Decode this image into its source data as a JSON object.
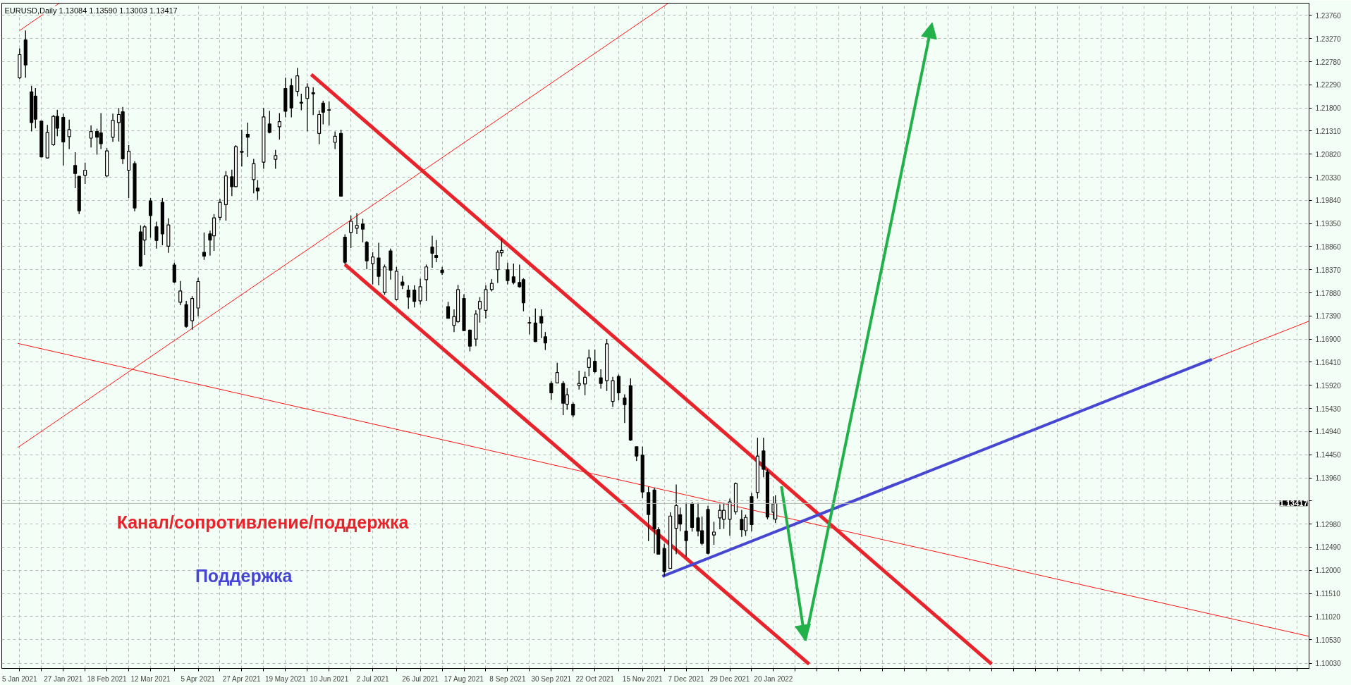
{
  "chart_data": {
    "type": "candlestick",
    "title": "EURUSD,Daily  1.13084 1.13590 1.13003 1.13417",
    "x": [
      "2021-01-05",
      "2021-01-08",
      "2021-01-11",
      "2021-01-13",
      "2021-01-16",
      "2021-01-19",
      "2021-01-22",
      "2021-01-24",
      "2021-01-27",
      "2021-01-30",
      "2021-02-02",
      "2021-02-04",
      "2021-02-07",
      "2021-02-10",
      "2021-02-13",
      "2021-02-15",
      "2021-02-18",
      "2021-02-21",
      "2021-02-24",
      "2021-02-26",
      "2021-03-01",
      "2021-03-04",
      "2021-03-07",
      "2021-03-09",
      "2021-03-12",
      "2021-03-15",
      "2021-03-18",
      "2021-03-21",
      "2021-03-24",
      "2021-03-27",
      "2021-03-30",
      "2021-04-02",
      "2021-04-05",
      "2021-04-08",
      "2021-04-11",
      "2021-04-13",
      "2021-04-16",
      "2021-04-19",
      "2021-04-22",
      "2021-04-24",
      "2021-04-27",
      "2021-04-30",
      "2021-05-03",
      "2021-05-05",
      "2021-05-08",
      "2021-05-11",
      "2021-05-14",
      "2021-05-16",
      "2021-05-19",
      "2021-05-22",
      "2021-05-25",
      "2021-05-27",
      "2021-05-30",
      "2021-06-02",
      "2021-06-05",
      "2021-06-07",
      "2021-06-10",
      "2021-06-13",
      "2021-06-16",
      "2021-06-18",
      "2021-06-21",
      "2021-06-24",
      "2021-06-27",
      "2021-06-29",
      "2021-07-02",
      "2021-07-05",
      "2021-07-08",
      "2021-07-11",
      "2021-07-14",
      "2021-07-17",
      "2021-07-20",
      "2021-07-23",
      "2021-07-26",
      "2021-07-29",
      "2021-08-01",
      "2021-08-03",
      "2021-08-06",
      "2021-08-09",
      "2021-08-12",
      "2021-08-14",
      "2021-08-17",
      "2021-08-20",
      "2021-08-23",
      "2021-08-25",
      "2021-08-28",
      "2021-08-31",
      "2021-09-03",
      "2021-09-05",
      "2021-09-08",
      "2021-09-11",
      "2021-09-14",
      "2021-09-16",
      "2021-09-19",
      "2021-09-22",
      "2021-09-25",
      "2021-09-27",
      "2021-09-30",
      "2021-10-03",
      "2021-10-06",
      "2021-10-08",
      "2021-10-11",
      "2021-10-14",
      "2021-10-17",
      "2021-10-19",
      "2021-10-22",
      "2021-10-25",
      "2021-10-28",
      "2021-10-31",
      "2021-11-03",
      "2021-11-06",
      "2021-11-09",
      "2021-11-12",
      "2021-11-15",
      "2021-11-18",
      "2021-11-21",
      "2021-11-23",
      "2021-11-26",
      "2021-11-29",
      "2021-12-02",
      "2021-12-04",
      "2021-12-07",
      "2021-12-10",
      "2021-12-13",
      "2021-12-15",
      "2021-12-18",
      "2021-12-21",
      "2021-12-24",
      "2021-12-26",
      "2021-12-29",
      "2022-01-01",
      "2022-01-04",
      "2022-01-06",
      "2022-01-09",
      "2022-01-12",
      "2022-01-15",
      "2022-01-17",
      "2022-01-20",
      "2022-01-21"
    ],
    "ohlc": [
      [
        1.2244,
        1.2306,
        1.2241,
        1.2293
      ],
      [
        1.2324,
        1.2344,
        1.2244,
        1.2271
      ],
      [
        1.2214,
        1.2227,
        1.213,
        1.2149
      ],
      [
        1.2205,
        1.2222,
        1.2137,
        1.2156
      ],
      [
        1.2152,
        1.2152,
        1.2075,
        1.2076
      ],
      [
        1.2074,
        1.2144,
        1.2073,
        1.2128
      ],
      [
        1.2102,
        1.2165,
        1.21,
        1.2162
      ],
      [
        1.2162,
        1.2176,
        1.212,
        1.2137
      ],
      [
        1.216,
        1.2168,
        1.2058,
        1.2108
      ],
      [
        1.2119,
        1.2155,
        1.2093,
        1.2134
      ],
      [
        1.2058,
        1.2086,
        1.201,
        1.2041
      ],
      [
        1.2035,
        1.2035,
        1.1955,
        1.1962
      ],
      [
        1.2037,
        1.2064,
        1.2019,
        1.2048
      ],
      [
        1.2116,
        1.2143,
        1.2096,
        1.213
      ],
      [
        1.213,
        1.2136,
        1.2081,
        1.2118
      ],
      [
        1.2127,
        1.2169,
        1.2093,
        1.2104
      ],
      [
        1.2036,
        1.2095,
        1.2033,
        1.2089
      ],
      [
        1.2118,
        1.2168,
        1.2108,
        1.2154
      ],
      [
        1.2149,
        1.218,
        1.2109,
        1.2166
      ],
      [
        1.2172,
        1.2182,
        1.2061,
        1.2072
      ],
      [
        1.2048,
        1.2101,
        1.1989,
        1.2088
      ],
      [
        1.2062,
        1.2067,
        1.1961,
        1.1968
      ],
      [
        1.1917,
        1.1931,
        1.1843,
        1.1845
      ],
      [
        1.19,
        1.1932,
        1.1868,
        1.1928
      ],
      [
        1.1983,
        1.1989,
        1.1905,
        1.1952
      ],
      [
        1.1928,
        1.1939,
        1.1882,
        1.1899
      ],
      [
        1.198,
        1.1989,
        1.1889,
        1.1913
      ],
      [
        1.1887,
        1.1946,
        1.1873,
        1.1932
      ],
      [
        1.1847,
        1.1852,
        1.1809,
        1.1811
      ],
      [
        1.1768,
        1.1813,
        1.1762,
        1.1792
      ],
      [
        1.1763,
        1.1771,
        1.1714,
        1.1717
      ],
      [
        1.1729,
        1.1781,
        1.171,
        1.1776
      ],
      [
        1.1756,
        1.182,
        1.1738,
        1.1812
      ],
      [
        1.1874,
        1.1916,
        1.1858,
        1.1866
      ],
      [
        1.1913,
        1.192,
        1.1867,
        1.19
      ],
      [
        1.1909,
        1.1955,
        1.1877,
        1.1947
      ],
      [
        1.1948,
        1.1987,
        1.1942,
        1.198
      ],
      [
        1.1975,
        1.2046,
        1.1941,
        1.2036
      ],
      [
        1.2034,
        1.2049,
        1.1993,
        1.2013
      ],
      [
        1.2013,
        1.2101,
        1.2012,
        1.2098
      ],
      [
        1.2086,
        1.2134,
        1.2056,
        1.2088
      ],
      [
        1.2124,
        1.2149,
        1.2076,
        1.2118
      ],
      [
        1.2028,
        1.2072,
        1.1999,
        1.2062
      ],
      [
        1.201,
        1.2027,
        1.1985,
        1.2004
      ],
      [
        1.2065,
        1.218,
        1.2051,
        1.2161
      ],
      [
        1.2146,
        1.2174,
        1.2126,
        1.2128
      ],
      [
        1.2071,
        1.2091,
        1.2051,
        1.2079
      ],
      [
        1.214,
        1.2169,
        1.2113,
        1.2151
      ],
      [
        1.2221,
        1.2244,
        1.216,
        1.2173
      ],
      [
        1.2227,
        1.2242,
        1.216,
        1.218
      ],
      [
        1.2215,
        1.2265,
        1.2205,
        1.2248
      ],
      [
        1.219,
        1.221,
        1.2175,
        1.2192
      ],
      [
        1.22,
        1.2232,
        1.213,
        1.2224
      ],
      [
        1.2212,
        1.2224,
        1.2165,
        1.221
      ],
      [
        1.2126,
        1.2175,
        1.2103,
        1.2166
      ],
      [
        1.219,
        1.2195,
        1.2145,
        1.2171
      ],
      [
        1.2176,
        1.2194,
        1.2143,
        1.2175
      ],
      [
        1.2107,
        1.213,
        1.2093,
        1.212
      ],
      [
        1.2126,
        1.2134,
        1.1993,
        1.1993
      ],
      [
        1.1906,
        1.1912,
        1.1848,
        1.1853
      ],
      [
        1.1916,
        1.1952,
        1.1883,
        1.194
      ],
      [
        1.1925,
        1.1957,
        1.1913,
        1.1931
      ],
      [
        1.1934,
        1.1945,
        1.1895,
        1.1923
      ],
      [
        1.1895,
        1.1898,
        1.1838,
        1.1856
      ],
      [
        1.185,
        1.1874,
        1.1806,
        1.1864
      ],
      [
        1.1862,
        1.1894,
        1.1804,
        1.1823
      ],
      [
        1.1789,
        1.1848,
        1.1784,
        1.1843
      ],
      [
        1.1877,
        1.1882,
        1.1816,
        1.1836
      ],
      [
        1.1774,
        1.1843,
        1.1772,
        1.1834
      ],
      [
        1.1811,
        1.1824,
        1.1796,
        1.1804
      ],
      [
        1.1794,
        1.1804,
        1.1754,
        1.1779
      ],
      [
        1.1794,
        1.1804,
        1.1757,
        1.177
      ],
      [
        1.1771,
        1.1818,
        1.1763,
        1.1801
      ],
      [
        1.1816,
        1.1848,
        1.1771,
        1.1843
      ],
      [
        1.1885,
        1.1909,
        1.1841,
        1.1872
      ],
      [
        1.1867,
        1.19,
        1.1853,
        1.1863
      ],
      [
        1.1836,
        1.1843,
        1.1826,
        1.1831
      ],
      [
        1.1759,
        1.1769,
        1.1734,
        1.1734
      ],
      [
        1.1719,
        1.1753,
        1.1705,
        1.1738
      ],
      [
        1.1727,
        1.1805,
        1.1724,
        1.1795
      ],
      [
        1.1776,
        1.1785,
        1.1707,
        1.1708
      ],
      [
        1.1709,
        1.171,
        1.1664,
        1.1675
      ],
      [
        1.169,
        1.1751,
        1.1675,
        1.1743
      ],
      [
        1.1754,
        1.1779,
        1.1725,
        1.177
      ],
      [
        1.1751,
        1.1804,
        1.1734,
        1.1795
      ],
      [
        1.1795,
        1.1817,
        1.1791,
        1.1808
      ],
      [
        1.1837,
        1.1878,
        1.1809,
        1.1874
      ],
      [
        1.1873,
        1.1903,
        1.1865,
        1.1878
      ],
      [
        1.1837,
        1.1852,
        1.1806,
        1.1814
      ],
      [
        1.1822,
        1.185,
        1.1806,
        1.181
      ],
      [
        1.181,
        1.1848,
        1.1799,
        1.1801
      ],
      [
        1.1816,
        1.1819,
        1.1749,
        1.1767
      ],
      [
        1.1725,
        1.1737,
        1.17,
        1.1724
      ],
      [
        1.1724,
        1.1755,
        1.1684,
        1.1685
      ],
      [
        1.1738,
        1.1753,
        1.1692,
        1.1724
      ],
      [
        1.1695,
        1.1705,
        1.1667,
        1.1682
      ],
      [
        1.1596,
        1.1601,
        1.1561,
        1.1576
      ],
      [
        1.1597,
        1.164,
        1.1596,
        1.1619
      ],
      [
        1.1596,
        1.1601,
        1.1529,
        1.1554
      ],
      [
        1.1552,
        1.1586,
        1.154,
        1.1572
      ],
      [
        1.1552,
        1.1556,
        1.1524,
        1.1529
      ],
      [
        1.1592,
        1.1623,
        1.1583,
        1.1596
      ],
      [
        1.1595,
        1.1621,
        1.1571,
        1.1609
      ],
      [
        1.163,
        1.1668,
        1.1611,
        1.165
      ],
      [
        1.1643,
        1.1668,
        1.1618,
        1.1621
      ],
      [
        1.1608,
        1.1626,
        1.1585,
        1.1596
      ],
      [
        1.1602,
        1.169,
        1.158,
        1.168
      ],
      [
        1.1558,
        1.161,
        1.1546,
        1.1602
      ],
      [
        1.1611,
        1.1615,
        1.156,
        1.1576
      ],
      [
        1.1565,
        1.1573,
        1.1512,
        1.1551
      ],
      [
        1.1591,
        1.1607,
        1.1474,
        1.1476
      ],
      [
        1.1462,
        1.1462,
        1.1432,
        1.1442
      ],
      [
        1.1444,
        1.1462,
        1.1353,
        1.1366
      ],
      [
        1.1365,
        1.1377,
        1.1262,
        1.1318
      ],
      [
        1.137,
        1.1375,
        1.1236,
        1.1288
      ],
      [
        1.1286,
        1.1291,
        1.1234,
        1.1234
      ],
      [
        1.1246,
        1.1256,
        1.1187,
        1.1197
      ],
      [
        1.1204,
        1.1323,
        1.1204,
        1.1315
      ],
      [
        1.1289,
        1.1382,
        1.1234,
        1.1337
      ],
      [
        1.1318,
        1.1333,
        1.1283,
        1.1298
      ],
      [
        1.1283,
        1.1343,
        1.1229,
        1.1263
      ],
      [
        1.1341,
        1.1345,
        1.1282,
        1.1291
      ],
      [
        1.1311,
        1.1343,
        1.1272,
        1.1283
      ],
      [
        1.1284,
        1.1314,
        1.1253,
        1.1257
      ],
      [
        1.1329,
        1.1337,
        1.1234,
        1.1236
      ],
      [
        1.1275,
        1.1303,
        1.1254,
        1.1281
      ],
      [
        1.1311,
        1.134,
        1.1287,
        1.1327
      ],
      [
        1.1308,
        1.1343,
        1.1288,
        1.1327
      ],
      [
        1.1308,
        1.1352,
        1.1273,
        1.1345
      ],
      [
        1.1324,
        1.1386,
        1.1318,
        1.1384
      ],
      [
        1.1308,
        1.1328,
        1.1271,
        1.1286
      ],
      [
        1.1284,
        1.1318,
        1.1273,
        1.1312
      ],
      [
        1.1356,
        1.1364,
        1.1283,
        1.1297
      ],
      [
        1.1365,
        1.1481,
        1.1352,
        1.1442
      ],
      [
        1.1453,
        1.1481,
        1.1397,
        1.1414
      ],
      [
        1.1408,
        1.1414,
        1.1308,
        1.1313
      ],
      [
        1.1323,
        1.1357,
        1.1308,
        1.1341
      ],
      [
        1.13084,
        1.1359,
        1.13003,
        1.13417
      ]
    ],
    "series": [
      {
        "type": "line",
        "color": "#ff1010",
        "x": [
          "2021-01-04",
          "2021-11-28"
        ],
        "values": [
          1.146,
          1.2402
        ]
      },
      {
        "type": "line",
        "color": "#ff1010",
        "x": [
          "2021-01-05",
          "2021-01-25"
        ],
        "values": [
          1.2344,
          1.2402
        ]
      },
      {
        "type": "line",
        "color": "#ff1010",
        "x": [
          "2021-01-04",
          "2022-10-17"
        ],
        "values": [
          1.1681,
          1.106
        ]
      },
      {
        "type": "line",
        "color": "#ff1010",
        "x": [
          "2022-08-29",
          "2022-10-17"
        ],
        "values": [
          1.1647,
          1.1728
        ]
      },
      {
        "type": "line",
        "color": "#e8232b",
        "x": [
          "2021-06-01",
          "2022-05-10"
        ],
        "values": [
          1.2251,
          1.1001
        ]
      },
      {
        "type": "line",
        "color": "#e8232b",
        "x": [
          "2021-06-18",
          "2022-02-07"
        ],
        "values": [
          1.1848,
          1.1001
        ]
      },
      {
        "type": "line",
        "color": "#4646d2",
        "x": [
          "2021-11-25",
          "2022-08-29"
        ],
        "values": [
          1.1187,
          1.1647
        ]
      }
    ],
    "ref_lines": [
      {
        "axis": "y",
        "value": 1.13417,
        "label": "1.13417",
        "color": "#b4b4b4"
      }
    ],
    "annotations": [
      "Канал/сопротивление/поддержка",
      "Поддержка"
    ],
    "xlim": [
      "2020-12-27",
      "2022-10-17"
    ],
    "xticks": [
      {
        "value": "2021-01-05",
        "label": "5 Jan 2021"
      },
      {
        "value": "2021-01-16",
        "label": null
      },
      {
        "value": "2021-01-27",
        "label": "27 Jan 2021"
      },
      {
        "value": "2021-02-07",
        "label": null
      },
      {
        "value": "2021-02-18",
        "label": "18 Feb 2021"
      },
      {
        "value": "2021-03-01",
        "label": null
      },
      {
        "value": "2021-03-12",
        "label": "12 Mar 2021"
      },
      {
        "value": "2021-03-24",
        "label": null
      },
      {
        "value": "2021-04-05",
        "label": "5 Apr 2021"
      },
      {
        "value": "2021-04-16",
        "label": null
      },
      {
        "value": "2021-04-27",
        "label": "27 Apr 2021"
      },
      {
        "value": "2021-05-08",
        "label": null
      },
      {
        "value": "2021-05-19",
        "label": "19 May 2021"
      },
      {
        "value": "2021-05-30",
        "label": null
      },
      {
        "value": "2021-06-10",
        "label": "10 Jun 2021"
      },
      {
        "value": "2021-06-21",
        "label": null
      },
      {
        "value": "2021-07-02",
        "label": "2 Jul 2021"
      },
      {
        "value": "2021-07-14",
        "label": null
      },
      {
        "value": "2021-07-26",
        "label": "26 Jul 2021"
      },
      {
        "value": "2021-08-06",
        "label": null
      },
      {
        "value": "2021-08-17",
        "label": "17 Aug 2021"
      },
      {
        "value": "2021-08-28",
        "label": null
      },
      {
        "value": "2021-09-08",
        "label": "8 Sep 2021"
      },
      {
        "value": "2021-09-19",
        "label": null
      },
      {
        "value": "2021-09-30",
        "label": "30 Sep 2021"
      },
      {
        "value": "2021-10-11",
        "label": null
      },
      {
        "value": "2021-10-22",
        "label": "22 Oct 2021"
      },
      {
        "value": "2021-11-03",
        "label": null
      },
      {
        "value": "2021-11-15",
        "label": "15 Nov 2021"
      },
      {
        "value": "2021-11-26",
        "label": null
      },
      {
        "value": "2021-12-07",
        "label": "7 Dec 2021"
      },
      {
        "value": "2021-12-18",
        "label": null
      },
      {
        "value": "2021-12-29",
        "label": "29 Dec 2021"
      },
      {
        "value": "2022-01-09",
        "label": null
      },
      {
        "value": "2022-01-20",
        "label": "20 Jan 2022"
      },
      {
        "value": "2022-01-31",
        "label": null
      },
      {
        "value": "2022-02-11",
        "label": null
      },
      {
        "value": "2022-02-22",
        "label": null
      },
      {
        "value": "2022-03-05",
        "label": null
      },
      {
        "value": "2022-03-16",
        "label": null
      },
      {
        "value": "2022-03-27",
        "label": null
      },
      {
        "value": "2022-04-07",
        "label": null
      },
      {
        "value": "2022-04-18",
        "label": null
      },
      {
        "value": "2022-04-29",
        "label": null
      },
      {
        "value": "2022-05-10",
        "label": null
      },
      {
        "value": "2022-05-21",
        "label": null
      },
      {
        "value": "2022-06-01",
        "label": null
      },
      {
        "value": "2022-06-12",
        "label": null
      },
      {
        "value": "2022-06-23",
        "label": null
      },
      {
        "value": "2022-07-04",
        "label": null
      },
      {
        "value": "2022-07-15",
        "label": null
      },
      {
        "value": "2022-07-26",
        "label": null
      },
      {
        "value": "2022-08-06",
        "label": null
      },
      {
        "value": "2022-08-17",
        "label": null
      },
      {
        "value": "2022-08-28",
        "label": null
      },
      {
        "value": "2022-09-08",
        "label": null
      },
      {
        "value": "2022-09-19",
        "label": null
      },
      {
        "value": "2022-09-30",
        "label": null
      },
      {
        "value": "2022-10-11",
        "label": null
      }
    ],
    "ylim": [
      1.0992,
      1.2402
    ],
    "yticks": [
      {
        "value": 1.1003,
        "label": "1.10030"
      },
      {
        "value": 1.1053,
        "label": "1.10530"
      },
      {
        "value": 1.1102,
        "label": "1.11020"
      },
      {
        "value": 1.1151,
        "label": "1.11510"
      },
      {
        "value": 1.12,
        "label": "1.12000"
      },
      {
        "value": 1.1249,
        "label": "1.12490"
      },
      {
        "value": 1.1298,
        "label": "1.12980"
      },
      {
        "value": 1.1347,
        "label": null
      },
      {
        "value": 1.1396,
        "label": "1.13960"
      },
      {
        "value": 1.1445,
        "label": "1.14450"
      },
      {
        "value": 1.1494,
        "label": "1.14940"
      },
      {
        "value": 1.1543,
        "label": "1.15430"
      },
      {
        "value": 1.1592,
        "label": "1.15920"
      },
      {
        "value": 1.1641,
        "label": "1.16410"
      },
      {
        "value": 1.169,
        "label": "1.16900"
      },
      {
        "value": 1.1739,
        "label": "1.17390"
      },
      {
        "value": 1.1788,
        "label": "1.17880"
      },
      {
        "value": 1.1837,
        "label": "1.18370"
      },
      {
        "value": 1.1886,
        "label": "1.18860"
      },
      {
        "value": 1.1935,
        "label": "1.19350"
      },
      {
        "value": 1.1984,
        "label": "1.19840"
      },
      {
        "value": 1.2033,
        "label": "1.20330"
      },
      {
        "value": 1.2082,
        "label": "1.20820"
      },
      {
        "value": 1.2131,
        "label": "1.21310"
      },
      {
        "value": 1.218,
        "label": "1.21800"
      },
      {
        "value": 1.2229,
        "label": "1.22290"
      },
      {
        "value": 1.2278,
        "label": "1.22780"
      },
      {
        "value": 1.2327,
        "label": "1.23270"
      },
      {
        "value": 1.2376,
        "label": "1.23760"
      }
    ],
    "grid": true
  }
}
